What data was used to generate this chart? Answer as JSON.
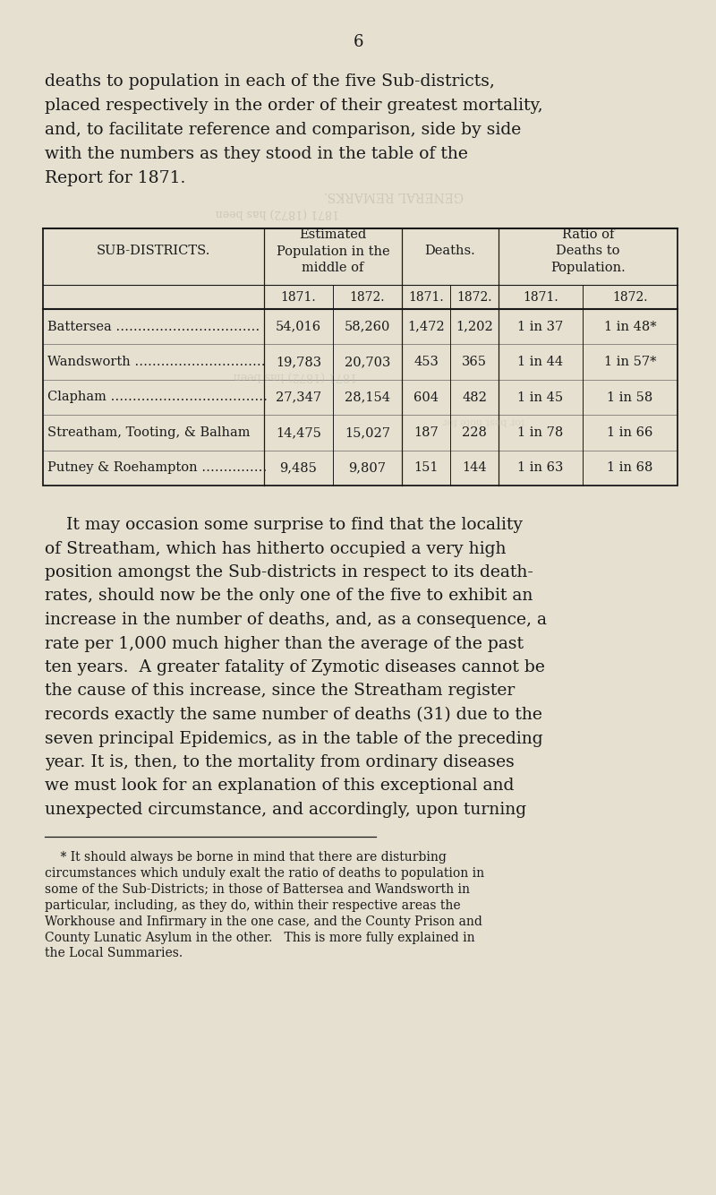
{
  "page_number": "6",
  "bg_color": "#e5e0d0",
  "text_color": "#1a1a1a",
  "intro_lines": [
    "deaths to population in each of the five Sub-districts,",
    "placed respectively in the order of their greatest mortality,",
    "and, to facilitate reference and comparison, side by side",
    "with the numbers as they stood in the table of the",
    "Report for 1871."
  ],
  "watermark1": "GENERAL REMARKS.",
  "watermark2": "1871 (1872) has been",
  "table_rows": [
    [
      "Battersea ……………………………",
      "54,016",
      "58,260",
      "1,472",
      "1,202",
      "1 in 37",
      "1 in 48*"
    ],
    [
      "Wandsworth …………………………",
      "19,783",
      "20,703",
      "453",
      "365",
      "1 in 44",
      "1 in 57*"
    ],
    [
      "Clapham ………………………………",
      "27,347",
      "28,154",
      "604",
      "482",
      "1 in 45",
      "1 in 58"
    ],
    [
      "Streatham, Tooting, & Balham",
      "14,475",
      "15,027",
      "187",
      "228",
      "1 in 78",
      "1 in 66"
    ],
    [
      "Putney & Roehampton ……………",
      "9,485",
      "9,807",
      "151",
      "144",
      "1 in 63",
      "1 in 68"
    ]
  ],
  "body_lines": [
    "    It may occasion some surprise to find that the locality",
    "of Streatham, which has hitherto occupied a very high",
    "position amongst the Sub-districts in respect to its death-",
    "rates, should now be the only one of the five to exhibit an",
    "increase in the number of deaths, and, as a consequence, a",
    "rate per 1,000 much higher than the average of the past",
    "ten years.  A greater fatality of Zymotic diseases cannot be",
    "the cause of this increase, since the Streatham register",
    "records exactly the same number of deaths (31) due to the",
    "seven principal Epidemics, as in the table of the preceding",
    "year. It is, then, to the mortality from ordinary diseases",
    "we must look for an explanation of this exceptional and",
    "unexpected circumstance, and accordingly, upon turning"
  ],
  "footnote_lines": [
    "    * It should always be borne in mind that there are disturbing",
    "circumstances which unduly exalt the ratio of deaths to population in",
    "some of the Sub-Districts; in those of Battersea and Wandsworth in",
    "particular, including, as they do, within their respective areas the",
    "Workhouse and Infirmary in the one case, and the County Prison and",
    "County Lunatic Asylum in the other.   This is more fully explained in",
    "the Local Summaries."
  ]
}
